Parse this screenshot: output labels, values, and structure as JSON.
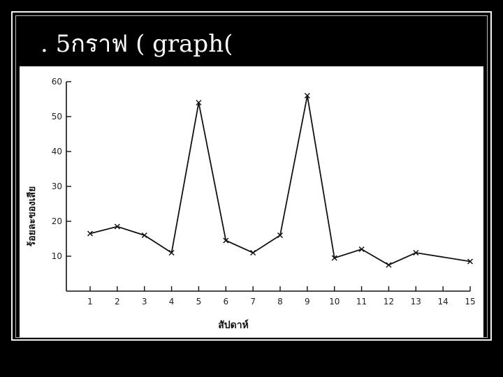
{
  "slide": {
    "title": ". 5กราฟ  ( graph("
  },
  "chart_data": {
    "type": "line",
    "title": "",
    "xlabel": "สัปดาห์",
    "ylabel": "ร้อยละของเสีย",
    "x": [
      1,
      2,
      3,
      4,
      5,
      6,
      7,
      8,
      9,
      10,
      11,
      12,
      13,
      15
    ],
    "values": [
      16.5,
      18.5,
      16,
      11,
      54,
      14.5,
      11,
      16,
      56,
      9.5,
      12,
      7.5,
      11,
      8.5
    ],
    "x_ticks": [
      1,
      2,
      3,
      4,
      5,
      6,
      7,
      8,
      9,
      10,
      11,
      12,
      13,
      14,
      15
    ],
    "x_tick_labels": [
      "1",
      "2",
      "3",
      "4",
      "5",
      "6",
      "7",
      "8",
      "9",
      "10",
      "11",
      "12",
      "13",
      "14",
      "15"
    ],
    "y_ticks": [
      10,
      20,
      30,
      40,
      50,
      60
    ],
    "y_tick_labels": [
      "10",
      "20",
      "30",
      "40",
      "50",
      "60"
    ],
    "ylim": [
      0,
      60
    ],
    "xlim": [
      0,
      15
    ],
    "marker": "x",
    "grid": false,
    "legend": "none"
  }
}
